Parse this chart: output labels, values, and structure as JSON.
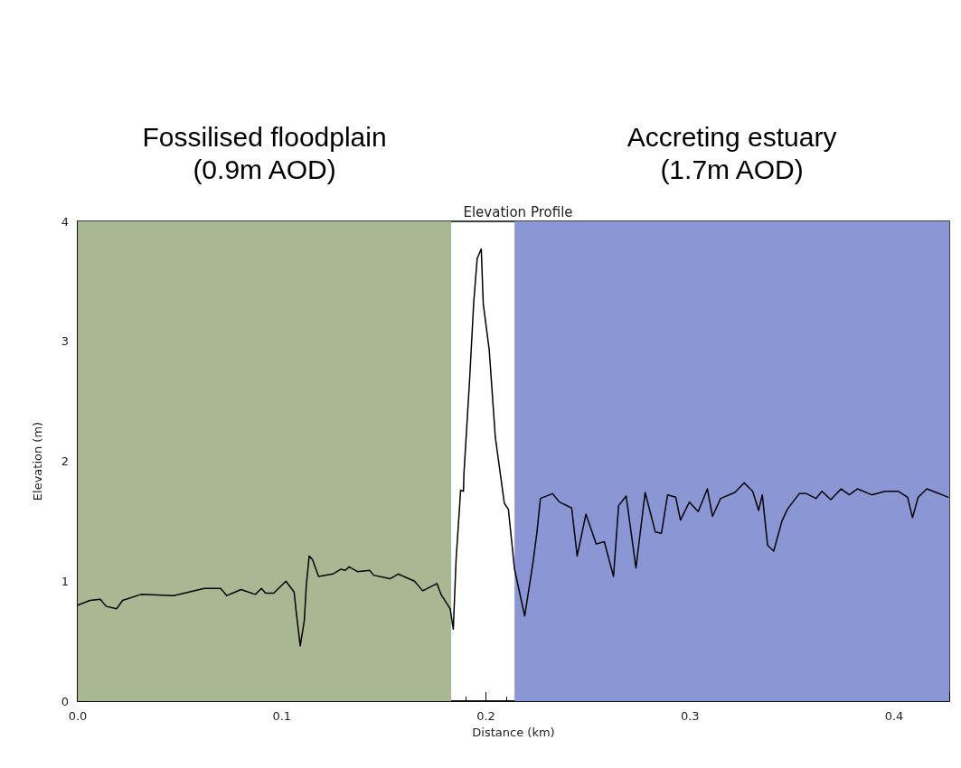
{
  "chart_data": {
    "type": "line",
    "title": "Elevation Profile",
    "xlabel": "Distance (km)",
    "ylabel": "Elevation (m)",
    "xlim": [
      0,
      0.427
    ],
    "xticks": [
      {
        "value": 0,
        "label": "0.0"
      },
      0.1,
      0.2,
      0.3,
      0.4
    ],
    "ylim": [
      0,
      4
    ],
    "yticks": [
      0,
      1,
      2,
      3,
      4
    ],
    "grid": false,
    "marker": "none",
    "line_style": "solid",
    "bands": [
      {
        "axis": "x",
        "from": 0,
        "to": 0.183,
        "label": "Fossilised floodplain\n(0.9m AOD)",
        "color": "#a9b893"
      },
      {
        "axis": "x",
        "from": 0.214,
        "to": 0.427,
        "label": "Accreting estuary\n(1.7m AOD)",
        "color": "#8b97d5"
      }
    ],
    "series": [
      {
        "color": "#000000",
        "x": [
          0,
          0.006,
          0.011,
          0.014,
          0.019,
          0.022,
          0.031,
          0.047,
          0.062,
          0.07,
          0.073,
          0.08,
          0.087,
          0.09,
          0.092,
          0.096,
          0.102,
          0.106,
          0.107,
          0.109,
          0.111,
          0.112,
          0.1134,
          0.115,
          0.118,
          0.125,
          0.129,
          0.131,
          0.133,
          0.137,
          0.143,
          0.145,
          0.153,
          0.157,
          0.165,
          0.169,
          0.176,
          0.178,
          0.1825,
          0.184,
          0.1854,
          0.187,
          0.1876,
          0.189,
          0.1892,
          0.192,
          0.194,
          0.1957,
          0.1977,
          0.1987,
          0.2016,
          0.2046,
          0.209,
          0.211,
          0.214,
          0.219,
          0.223,
          0.225,
          0.2267,
          0.2326,
          0.236,
          0.242,
          0.2447,
          0.249,
          0.254,
          0.258,
          0.2625,
          0.265,
          0.2687,
          0.2735,
          0.278,
          0.283,
          0.286,
          0.289,
          0.293,
          0.2953,
          0.2997,
          0.304,
          0.3085,
          0.311,
          0.315,
          0.322,
          0.3265,
          0.3307,
          0.3336,
          0.3354,
          0.338,
          0.341,
          0.345,
          0.3477,
          0.3535,
          0.357,
          0.3617,
          0.3646,
          0.369,
          0.374,
          0.378,
          0.382,
          0.389,
          0.3956,
          0.402,
          0.4066,
          0.409,
          0.4118,
          0.416,
          0.4206,
          0.4265
        ],
        "values": [
          0.8,
          0.84,
          0.85,
          0.79,
          0.77,
          0.84,
          0.89,
          0.88,
          0.94,
          0.94,
          0.88,
          0.93,
          0.89,
          0.94,
          0.9,
          0.9,
          1.0,
          0.91,
          0.75,
          0.46,
          0.67,
          0.97,
          1.21,
          1.18,
          1.04,
          1.06,
          1.1,
          1.09,
          1.12,
          1.08,
          1.09,
          1.05,
          1.02,
          1.06,
          1.0,
          0.92,
          0.98,
          0.89,
          0.77,
          0.6,
          1.19,
          1.6,
          1.76,
          1.75,
          1.89,
          2.68,
          3.32,
          3.69,
          3.77,
          3.31,
          2.93,
          2.2,
          1.65,
          1.6,
          1.1,
          0.71,
          1.15,
          1.41,
          1.69,
          1.73,
          1.66,
          1.61,
          1.21,
          1.56,
          1.31,
          1.33,
          1.04,
          1.63,
          1.71,
          1.11,
          1.74,
          1.41,
          1.4,
          1.72,
          1.7,
          1.51,
          1.66,
          1.58,
          1.77,
          1.54,
          1.69,
          1.74,
          1.82,
          1.75,
          1.59,
          1.72,
          1.3,
          1.25,
          1.5,
          1.6,
          1.73,
          1.73,
          1.69,
          1.75,
          1.68,
          1.77,
          1.72,
          1.77,
          1.72,
          1.75,
          1.75,
          1.7,
          1.53,
          1.7,
          1.77,
          1.74,
          1.7
        ]
      }
    ]
  }
}
